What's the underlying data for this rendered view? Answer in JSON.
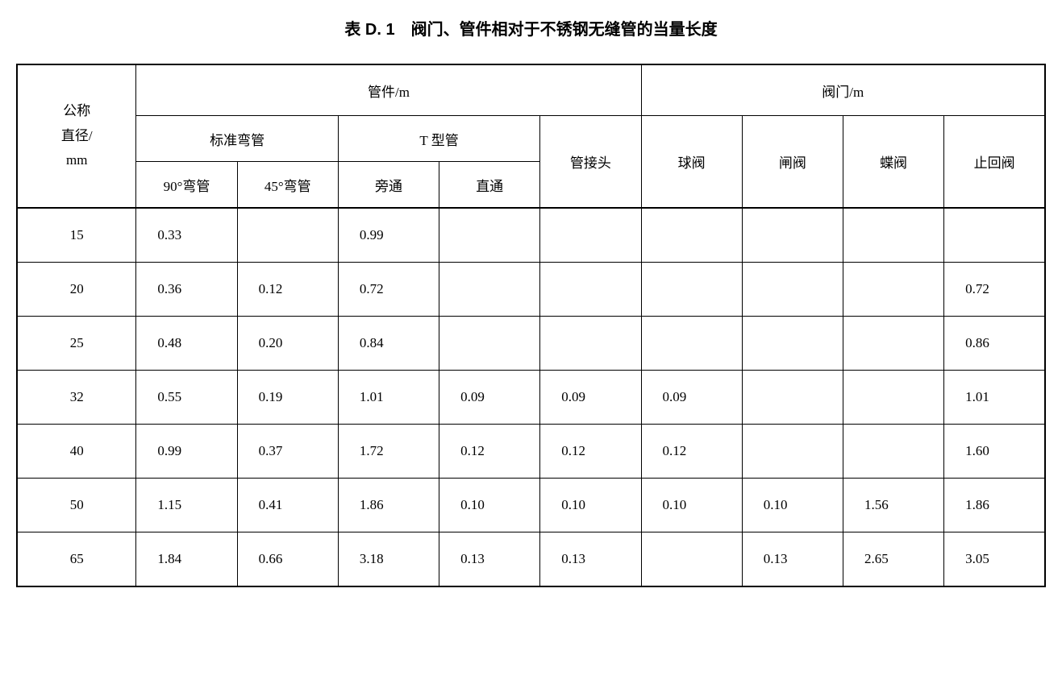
{
  "title": "表 D. 1　阀门、管件相对于不锈钢无缝管的当量长度",
  "headers": {
    "col0": "公称\n直径/\nmm",
    "group1": "管件/m",
    "group2": "阀门/m",
    "sub_bend": "标准弯管",
    "sub_t": "T 型管",
    "sub_joint": "管接头",
    "sub_ball": "球阀",
    "sub_gate": "闸阀",
    "sub_butterfly": "蝶阀",
    "sub_check": "止回阀",
    "leaf_90": "90°弯管",
    "leaf_45": "45°弯管",
    "leaf_bypass": "旁通",
    "leaf_through": "直通"
  },
  "rows": [
    {
      "d": "15",
      "b90": "0.33",
      "b45": "",
      "tby": "0.99",
      "tth": "",
      "jt": "",
      "ball": "",
      "gate": "",
      "bfly": "",
      "chk": ""
    },
    {
      "d": "20",
      "b90": "0.36",
      "b45": "0.12",
      "tby": "0.72",
      "tth": "",
      "jt": "",
      "ball": "",
      "gate": "",
      "bfly": "",
      "chk": "0.72"
    },
    {
      "d": "25",
      "b90": "0.48",
      "b45": "0.20",
      "tby": "0.84",
      "tth": "",
      "jt": "",
      "ball": "",
      "gate": "",
      "bfly": "",
      "chk": "0.86"
    },
    {
      "d": "32",
      "b90": "0.55",
      "b45": "0.19",
      "tby": "1.01",
      "tth": "0.09",
      "jt": "0.09",
      "ball": "0.09",
      "gate": "",
      "bfly": "",
      "chk": "1.01"
    },
    {
      "d": "40",
      "b90": "0.99",
      "b45": "0.37",
      "tby": "1.72",
      "tth": "0.12",
      "jt": "0.12",
      "ball": "0.12",
      "gate": "",
      "bfly": "",
      "chk": "1.60"
    },
    {
      "d": "50",
      "b90": "1.15",
      "b45": "0.41",
      "tby": "1.86",
      "tth": "0.10",
      "jt": "0.10",
      "ball": "0.10",
      "gate": "0.10",
      "bfly": "1.56",
      "chk": "1.86"
    },
    {
      "d": "65",
      "b90": "1.84",
      "b45": "0.66",
      "tby": "3.18",
      "tth": "0.13",
      "jt": "0.13",
      "ball": "",
      "gate": "0.13",
      "bfly": "2.65",
      "chk": "3.05"
    }
  ]
}
